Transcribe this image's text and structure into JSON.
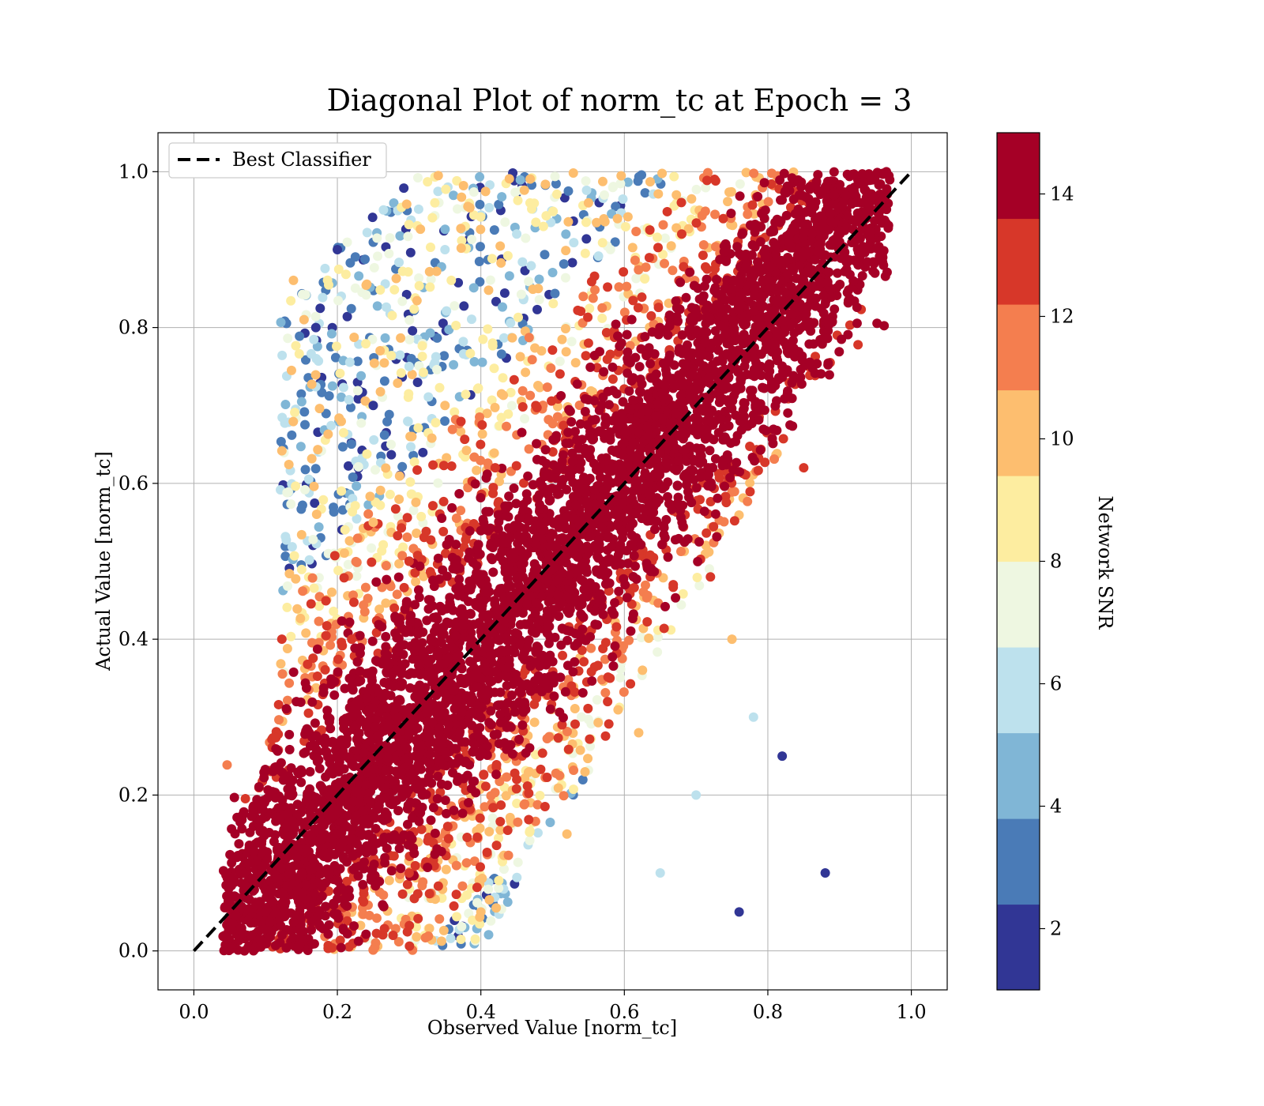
{
  "chart_data": {
    "type": "scatter",
    "title": "Diagonal Plot of norm_tc at Epoch = 3",
    "xlabel": "Observed Value [norm_tc]",
    "ylabel": "Actual Value [norm_tc]",
    "xlim": [
      -0.05,
      1.05
    ],
    "ylim": [
      -0.05,
      1.05
    ],
    "xticks": [
      "0.0",
      "0.2",
      "0.4",
      "0.6",
      "0.8",
      "1.0"
    ],
    "yticks": [
      "0.0",
      "0.2",
      "0.4",
      "0.6",
      "0.8",
      "1.0"
    ],
    "grid": true,
    "legend": {
      "placement": "upper-left",
      "entries": [
        "Best Classifier"
      ]
    },
    "reference_line": {
      "name": "Best Classifier",
      "style": "dashed",
      "color": "#000000",
      "x": [
        0.0,
        1.0
      ],
      "y": [
        0.0,
        1.0
      ]
    },
    "colorbar": {
      "label": "Network SNR",
      "range": [
        1,
        15
      ],
      "ticks": [
        "2",
        "4",
        "6",
        "8",
        "10",
        "12",
        "14"
      ],
      "colormap": "RdYlBu_r",
      "bins": [
        {
          "from": 1.0,
          "to": 2.4,
          "color": "#313695"
        },
        {
          "from": 2.4,
          "to": 3.8,
          "color": "#4a7bb7"
        },
        {
          "from": 3.8,
          "to": 5.2,
          "color": "#80b6d6"
        },
        {
          "from": 5.2,
          "to": 6.6,
          "color": "#bde1ed"
        },
        {
          "from": 6.6,
          "to": 8.0,
          "color": "#eef7e1"
        },
        {
          "from": 8.0,
          "to": 9.4,
          "color": "#fdeda0"
        },
        {
          "from": 9.4,
          "to": 10.8,
          "color": "#fdbe6f"
        },
        {
          "from": 10.8,
          "to": 12.2,
          "color": "#f47e4f"
        },
        {
          "from": 12.2,
          "to": 13.6,
          "color": "#d73729"
        },
        {
          "from": 13.6,
          "to": 15.0,
          "color": "#a50026"
        }
      ]
    },
    "scatter_points_approx": [
      [
        0.1,
        0.05,
        14.5
      ],
      [
        0.15,
        0.1,
        14.5
      ],
      [
        0.2,
        0.18,
        14.5
      ],
      [
        0.25,
        0.22,
        14.5
      ],
      [
        0.3,
        0.28,
        14.5
      ],
      [
        0.35,
        0.33,
        14.5
      ],
      [
        0.4,
        0.41,
        14.5
      ],
      [
        0.45,
        0.46,
        14.5
      ],
      [
        0.5,
        0.49,
        14.5
      ],
      [
        0.55,
        0.56,
        14.5
      ],
      [
        0.6,
        0.61,
        14.5
      ],
      [
        0.65,
        0.64,
        14.5
      ],
      [
        0.7,
        0.72,
        14.5
      ],
      [
        0.75,
        0.76,
        14.5
      ],
      [
        0.8,
        0.79,
        14.5
      ],
      [
        0.85,
        0.86,
        14.5
      ],
      [
        0.9,
        0.91,
        14.5
      ],
      [
        0.93,
        0.96,
        14.5
      ],
      [
        0.06,
        0.12,
        14.5
      ],
      [
        0.08,
        0.02,
        14.5
      ],
      [
        0.22,
        0.4,
        12.9
      ],
      [
        0.3,
        0.5,
        12.9
      ],
      [
        0.42,
        0.62,
        12.9
      ],
      [
        0.55,
        0.78,
        12.9
      ],
      [
        0.68,
        0.92,
        12.9
      ],
      [
        0.3,
        0.1,
        12.9
      ],
      [
        0.45,
        0.22,
        12.9
      ],
      [
        0.58,
        0.35,
        12.9
      ],
      [
        0.72,
        0.48,
        12.9
      ],
      [
        0.85,
        0.62,
        12.9
      ],
      [
        0.25,
        0.55,
        9.9
      ],
      [
        0.35,
        0.7,
        9.9
      ],
      [
        0.48,
        0.85,
        9.9
      ],
      [
        0.55,
        0.96,
        9.9
      ],
      [
        0.4,
        0.05,
        9.9
      ],
      [
        0.52,
        0.15,
        9.9
      ],
      [
        0.62,
        0.28,
        9.9
      ],
      [
        0.75,
        0.4,
        9.9
      ],
      [
        0.35,
        0.9,
        5.5
      ],
      [
        0.3,
        0.75,
        5.5
      ],
      [
        0.45,
        0.92,
        5.5
      ],
      [
        0.65,
        0.1,
        5.5
      ],
      [
        0.7,
        0.2,
        5.5
      ],
      [
        0.78,
        0.3,
        5.5
      ],
      [
        0.2,
        0.9,
        1.8
      ],
      [
        0.17,
        0.8,
        1.8
      ],
      [
        0.25,
        0.7,
        1.8
      ],
      [
        0.82,
        0.25,
        1.8
      ],
      [
        0.88,
        0.1,
        1.8
      ],
      [
        0.76,
        0.05,
        1.8
      ]
    ]
  }
}
